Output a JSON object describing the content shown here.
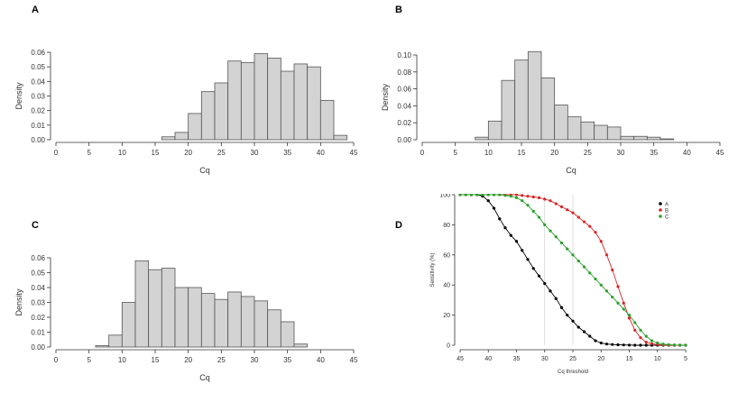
{
  "chart_data": [
    {
      "panel": "A",
      "type": "bar",
      "subtype": "histogram",
      "xlabel": "Cq",
      "ylabel": "Density",
      "xlim": [
        0,
        45
      ],
      "ylim": [
        0,
        0.06
      ],
      "xticks": [
        0,
        5,
        10,
        15,
        20,
        25,
        30,
        35,
        40,
        45
      ],
      "yticks": [
        "0.00",
        "0.01",
        "0.02",
        "0.03",
        "0.04",
        "0.05",
        "0.06"
      ],
      "bin_width": 2,
      "bins_start": [
        16,
        18,
        20,
        22,
        24,
        26,
        28,
        30,
        32,
        34,
        36,
        38,
        40,
        42
      ],
      "values": [
        0.002,
        0.005,
        0.018,
        0.033,
        0.039,
        0.054,
        0.053,
        0.059,
        0.056,
        0.047,
        0.052,
        0.05,
        0.027,
        0.003
      ],
      "bar_color": "#d3d3d3"
    },
    {
      "panel": "B",
      "type": "bar",
      "subtype": "histogram",
      "xlabel": "Cq",
      "ylabel": "Density",
      "xlim": [
        0,
        45
      ],
      "ylim": [
        0,
        0.1
      ],
      "xticks": [
        0,
        5,
        10,
        15,
        20,
        25,
        30,
        35,
        40,
        45
      ],
      "yticks": [
        "0.00",
        "0.02",
        "0.04",
        "0.06",
        "0.08",
        "0.10"
      ],
      "bin_width": 2,
      "bins_start": [
        8,
        10,
        12,
        14,
        16,
        18,
        20,
        22,
        24,
        26,
        28,
        30,
        32,
        34,
        36
      ],
      "values": [
        0.003,
        0.022,
        0.07,
        0.094,
        0.104,
        0.073,
        0.041,
        0.027,
        0.021,
        0.017,
        0.015,
        0.004,
        0.004,
        0.003,
        0.001
      ],
      "bar_color": "#d3d3d3"
    },
    {
      "panel": "C",
      "type": "bar",
      "subtype": "histogram",
      "xlabel": "Cq",
      "ylabel": "Density",
      "xlim": [
        0,
        45
      ],
      "ylim": [
        0,
        0.06
      ],
      "xticks": [
        0,
        5,
        10,
        15,
        20,
        25,
        30,
        35,
        40,
        45
      ],
      "yticks": [
        "0.00",
        "0.01",
        "0.02",
        "0.03",
        "0.04",
        "0.05",
        "0.06"
      ],
      "bin_width": 2,
      "bins_start": [
        6,
        8,
        10,
        12,
        14,
        16,
        18,
        20,
        22,
        24,
        26,
        28,
        30,
        32,
        34,
        36
      ],
      "values": [
        0.001,
        0.008,
        0.03,
        0.058,
        0.052,
        0.053,
        0.04,
        0.04,
        0.036,
        0.032,
        0.037,
        0.034,
        0.031,
        0.025,
        0.017,
        0.002
      ],
      "bar_color": "#d3d3d3"
    },
    {
      "panel": "D",
      "type": "line",
      "xlabel": "Cq threshold",
      "ylabel": "Sensitivity (%)",
      "xlim": [
        45,
        5
      ],
      "x_reversed": true,
      "ylim": [
        0,
        100
      ],
      "xticks": [
        45,
        40,
        35,
        30,
        25,
        20,
        15,
        10,
        5
      ],
      "yticks": [
        0,
        20,
        40,
        60,
        80,
        100
      ],
      "vlines": [
        30,
        25
      ],
      "legend_position": "top-right",
      "x": [
        45,
        44,
        43,
        42,
        41,
        40,
        39,
        38,
        37,
        36,
        35,
        34,
        33,
        32,
        31,
        30,
        29,
        28,
        27,
        26,
        25,
        24,
        23,
        22,
        21,
        20,
        19,
        18,
        17,
        16,
        15,
        14,
        13,
        12,
        11,
        10,
        9,
        8,
        7,
        6,
        5
      ],
      "series": [
        {
          "name": "A",
          "color": "#000000",
          "values": [
            100,
            100,
            100,
            100,
            99,
            96,
            91,
            84,
            78,
            73,
            69,
            63,
            57,
            51,
            46,
            41,
            36,
            31,
            25,
            20,
            16,
            12,
            9,
            6,
            3,
            1.5,
            0.8,
            0.5,
            0.3,
            0.2,
            0.1,
            0,
            0,
            0,
            0,
            0,
            0,
            0,
            0,
            0,
            0
          ]
        },
        {
          "name": "B",
          "color": "#d62728",
          "values": [
            100,
            100,
            100,
            100,
            100,
            100,
            100,
            100,
            100,
            100,
            100,
            99.5,
            99,
            98.5,
            98,
            97,
            96,
            94,
            92,
            90,
            88,
            85,
            82,
            79,
            75,
            69,
            60,
            50,
            39,
            28,
            18,
            10,
            5,
            2,
            1,
            0.5,
            0.2,
            0.1,
            0,
            0,
            0
          ]
        },
        {
          "name": "C",
          "color": "#2ca02c",
          "values": [
            100,
            100,
            100,
            100,
            100,
            100,
            100,
            100,
            99.5,
            99,
            98,
            96,
            93,
            89,
            85,
            80,
            76,
            72,
            68,
            64,
            60,
            56,
            52,
            48,
            44,
            40,
            36,
            32,
            28,
            24,
            20,
            15,
            10,
            6,
            3,
            1.5,
            0.8,
            0.4,
            0.2,
            0.1,
            0
          ]
        }
      ]
    }
  ]
}
